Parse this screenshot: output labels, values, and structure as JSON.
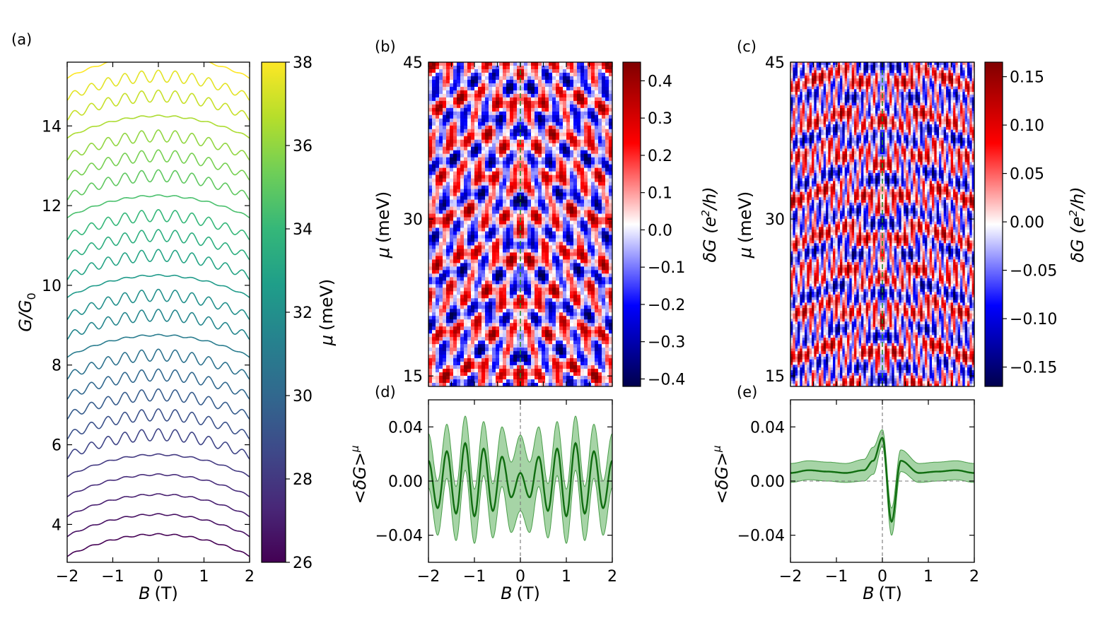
{
  "figure": {
    "panels": [
      "(a)",
      "(b)",
      "(c)",
      "(d)",
      "(e)"
    ]
  },
  "chart_data": [
    {
      "id": "a",
      "type": "line",
      "panel_label": "(a)",
      "title": "",
      "xlabel_italic": "B",
      "xlabel_unit": "(T)",
      "ylabel_main": "G/G",
      "ylabel_sub": "0",
      "xlim": [
        -2,
        2
      ],
      "ylim": [
        3.05,
        15.6
      ],
      "xticks": [
        -2,
        -1,
        0,
        1,
        2
      ],
      "yticks": [
        4,
        6,
        8,
        10,
        12,
        14
      ],
      "series_count": 25,
      "mu_range_meV": [
        26,
        38
      ],
      "offset_start": 3.2,
      "offset_step": 0.5,
      "curvature": 0.045,
      "oscillating_mu_meV": [
        28.5,
        29.0,
        29.5,
        30.0,
        30.5,
        31.5,
        32.0,
        33.0,
        33.5,
        34.0,
        35.0,
        35.5,
        36.0,
        37.0,
        37.5
      ],
      "oscillation_amplitude": 0.15,
      "oscillation_period_T": 0.37,
      "colorbar": {
        "label_italic": "μ",
        "label_unit": "(meV)",
        "range": [
          26,
          38
        ],
        "ticks": [
          26,
          28,
          30,
          32,
          34,
          36,
          38
        ],
        "colormap": "viridis",
        "stops": [
          "#440154",
          "#482878",
          "#3e4989",
          "#31688e",
          "#26828e",
          "#1f9e89",
          "#35b779",
          "#6ece58",
          "#b5de2b",
          "#fde725"
        ]
      }
    },
    {
      "id": "b",
      "type": "heatmap",
      "panel_label": "(b)",
      "ylabel_italic": "μ",
      "ylabel_unit": "(meV)",
      "xlim": [
        -2,
        2
      ],
      "ylim": [
        14,
        45
      ],
      "yticks": [
        15,
        30,
        45
      ],
      "marker_x": 0,
      "marker_color": "#2a8a2a",
      "pattern_period_T": 0.4,
      "colorbar": {
        "label_main": "δG (e",
        "label_sup": "2",
        "label_end": "/h)",
        "range": [
          -0.42,
          0.45
        ],
        "ticks": [
          -0.4,
          -0.3,
          -0.2,
          -0.1,
          0.0,
          0.1,
          0.2,
          0.3,
          0.4
        ],
        "tick_labels": [
          "−0.4",
          "−0.3",
          "−0.2",
          "−0.1",
          "0.0",
          "0.1",
          "0.2",
          "0.3",
          "0.4"
        ],
        "colormap": "seismic"
      }
    },
    {
      "id": "c",
      "type": "heatmap",
      "panel_label": "(c)",
      "ylabel_italic": "μ",
      "ylabel_unit": "(meV)",
      "xlim": [
        -2,
        2
      ],
      "ylim": [
        14,
        45
      ],
      "yticks": [
        15,
        30,
        45
      ],
      "marker_x": 0,
      "marker_color": "#2a8a2a",
      "pattern_period_T": 0.17,
      "colorbar": {
        "label_main": "δG (e",
        "label_sup": "2",
        "label_end": "/h)",
        "range": [
          -0.17,
          0.165
        ],
        "ticks": [
          -0.15,
          -0.1,
          -0.05,
          0.0,
          0.05,
          0.1,
          0.15
        ],
        "tick_labels": [
          "−0.15",
          "−0.10",
          "−0.05",
          "0.00",
          "0.05",
          "0.10",
          "0.15"
        ],
        "colormap": "seismic"
      }
    },
    {
      "id": "d",
      "type": "line",
      "panel_label": "(d)",
      "ylabel": "<δG>",
      "ylabel_sub": "μ",
      "xlabel_italic": "B",
      "xlabel_unit": "(T)",
      "xlim": [
        -2,
        2
      ],
      "ylim": [
        -0.06,
        0.06
      ],
      "xticks": [
        -2,
        -1,
        0,
        1,
        2
      ],
      "yticks": [
        -0.04,
        0.0,
        0.04
      ],
      "ytick_labels": [
        "−0.04",
        "0.00",
        "0.04"
      ],
      "series": [
        {
          "name": "mean",
          "color": "#106d10",
          "x": [
            -2,
            -1.8,
            -1.6,
            -1.4,
            -1.2,
            -1.0,
            -0.8,
            -0.6,
            -0.4,
            -0.2,
            0,
            0.2,
            0.4,
            0.6,
            0.8,
            1.0,
            1.2,
            1.4,
            1.6,
            1.8,
            2
          ],
          "values": [
            0.015,
            -0.02,
            0.022,
            -0.024,
            0.028,
            -0.026,
            0.024,
            -0.022,
            0.018,
            -0.012,
            0.006,
            -0.012,
            0.018,
            -0.022,
            0.024,
            -0.026,
            0.028,
            -0.024,
            0.022,
            -0.02,
            0.015
          ]
        },
        {
          "name": "spread",
          "color": "#6ab86a",
          "values": [
            0.02,
            0.02,
            0.02,
            0.02,
            0.02,
            0.02,
            0.02,
            0.02,
            0.022,
            0.026,
            0.028,
            0.026,
            0.022,
            0.02,
            0.02,
            0.02,
            0.02,
            0.02,
            0.02,
            0.02,
            0.02
          ]
        }
      ]
    },
    {
      "id": "e",
      "type": "line",
      "panel_label": "(e)",
      "ylabel": "<δG>",
      "ylabel_sub": "μ",
      "xlabel_italic": "B",
      "xlabel_unit": "(T)",
      "xlim": [
        -2,
        2
      ],
      "ylim": [
        -0.06,
        0.06
      ],
      "xticks": [
        -2,
        -1,
        0,
        1,
        2
      ],
      "yticks": [
        -0.04,
        0.0,
        0.04
      ],
      "ytick_labels": [
        "−0.04",
        "0.00",
        "0.04"
      ],
      "series": [
        {
          "name": "mean",
          "color": "#106d10",
          "x": [
            -2,
            -1.6,
            -1.2,
            -0.8,
            -0.4,
            -0.2,
            0,
            0.2,
            0.4,
            0.8,
            1.2,
            1.6,
            2
          ],
          "values": [
            0.006,
            0.008,
            0.007,
            0.006,
            0.008,
            0.015,
            0.032,
            -0.03,
            0.015,
            0.006,
            0.007,
            0.008,
            0.006
          ]
        },
        {
          "name": "spread",
          "color": "#6ab86a",
          "values": [
            0.007,
            0.007,
            0.007,
            0.007,
            0.008,
            0.01,
            0.006,
            0.01,
            0.008,
            0.007,
            0.007,
            0.007,
            0.007
          ]
        }
      ]
    }
  ]
}
